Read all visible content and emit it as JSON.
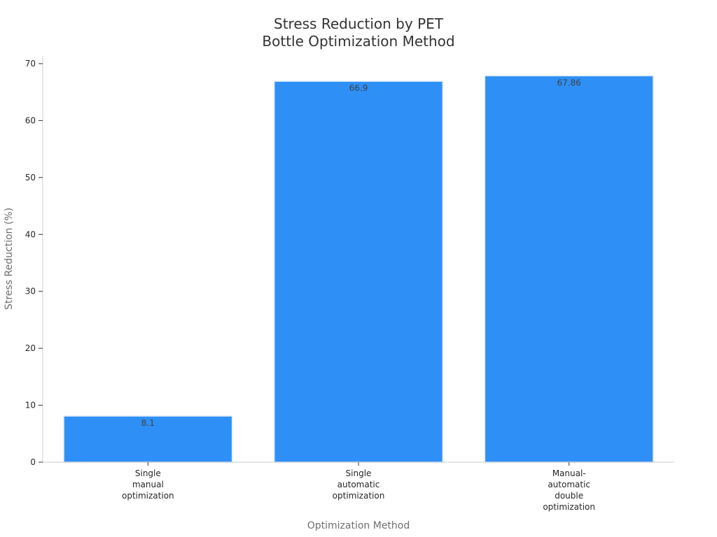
{
  "chart_data": {
    "type": "bar",
    "title_lines": [
      "Stress Reduction by PET",
      "Bottle Optimization Method"
    ],
    "xlabel": "Optimization Method",
    "ylabel": "Stress Reduction (%)",
    "categories": [
      [
        "Single",
        "manual",
        "optimization"
      ],
      [
        "Single",
        "automatic",
        "optimization"
      ],
      [
        "Manual-",
        "automatic",
        "double",
        "optimization"
      ]
    ],
    "values": [
      8.1,
      66.9,
      67.86
    ],
    "data_labels": [
      "8.1",
      "66.9",
      "67.86"
    ],
    "ylim": [
      0,
      70
    ],
    "yticks": [
      0,
      10,
      20,
      30,
      40,
      50,
      60,
      70
    ],
    "grid": false,
    "legend": "none",
    "colors": {
      "bar": "#2e90f7",
      "bar_edge": "#dce8f5",
      "axis": "#cccccc",
      "tick": "#333333"
    }
  }
}
